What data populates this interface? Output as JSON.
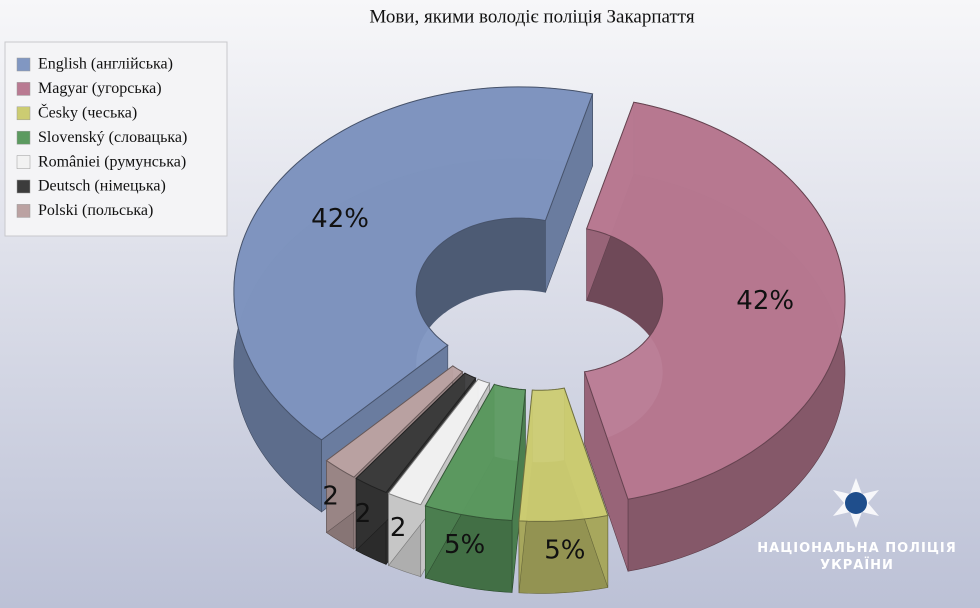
{
  "chart_data": {
    "type": "pie",
    "title": "Мови, якими володіє поліція Закарпаття",
    "categories": [
      "English (англійська)",
      "Magyar (угорська)",
      "Česky (чеська)",
      "Slovenský (словацька)",
      "României (румунська)",
      "Deutsch (німецька)",
      "Polski (польська)"
    ],
    "values": [
      42,
      42,
      5,
      5,
      2,
      2,
      2
    ],
    "value_labels": [
      "42%",
      "42%",
      "5%",
      "5%",
      "2",
      "2",
      "2"
    ],
    "colors": [
      "#8197c2",
      "#b97a92",
      "#cccc72",
      "#5c9a60",
      "#f2f2f2",
      "#3c3c3c",
      "#bba2a2"
    ],
    "legend": "top-left",
    "watermark": [
      "НАЦІОНАЛЬНА ПОЛІЦІЯ",
      "УКРАЇНИ"
    ]
  }
}
